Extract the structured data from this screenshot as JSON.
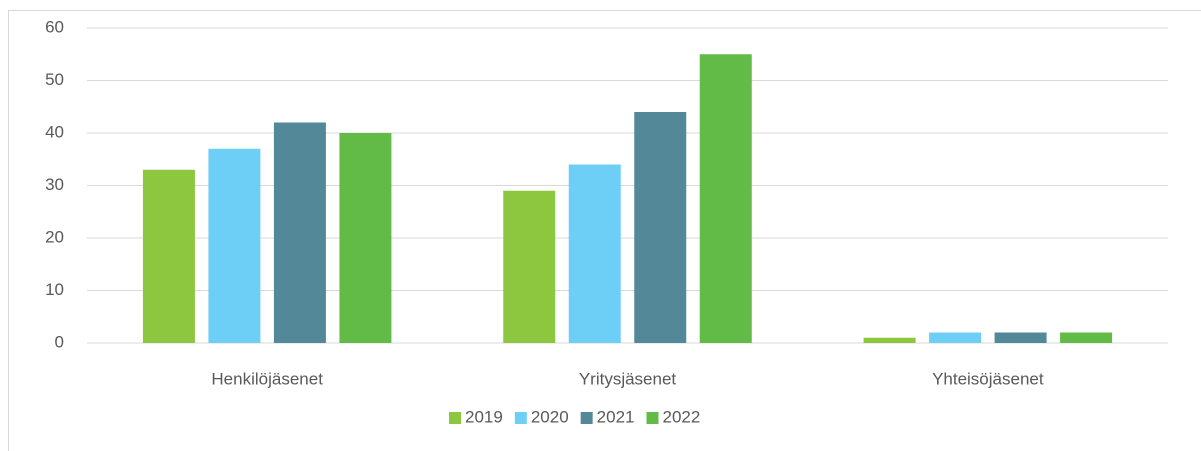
{
  "chart_data": {
    "type": "bar",
    "categories": [
      "Henkilöjäsenet",
      "Yritysjäsenet",
      "Yhteisöjäsenet"
    ],
    "series": [
      {
        "name": "2019",
        "color": "#8dc63f",
        "values": [
          33,
          29,
          1
        ]
      },
      {
        "name": "2020",
        "color": "#6dcff6",
        "values": [
          37,
          34,
          2
        ]
      },
      {
        "name": "2021",
        "color": "#538898",
        "values": [
          42,
          44,
          2
        ]
      },
      {
        "name": "2022",
        "color": "#62bb46",
        "values": [
          40,
          55,
          2
        ]
      }
    ],
    "ylim": [
      0,
      60
    ],
    "yticks": [
      0,
      10,
      20,
      30,
      40,
      50,
      60
    ],
    "grid": true,
    "legend": "bottom"
  }
}
